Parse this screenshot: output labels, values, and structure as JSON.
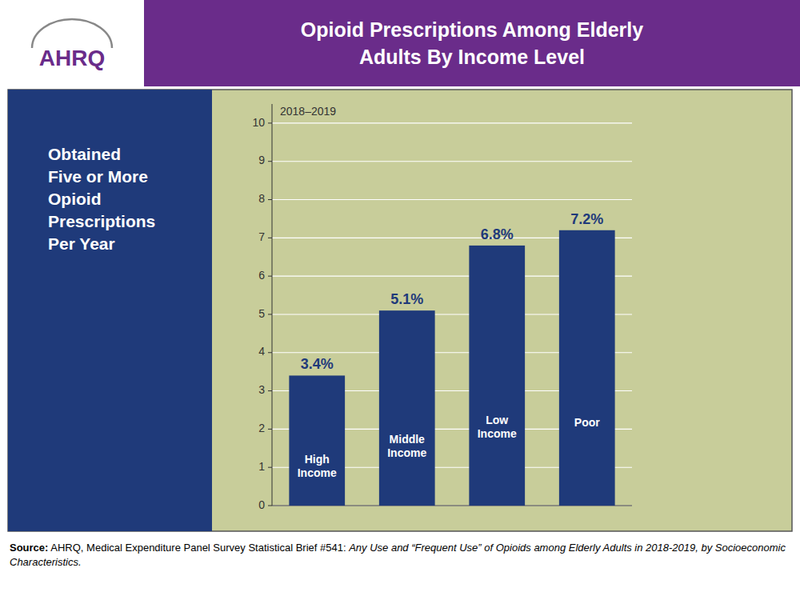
{
  "chart_data": {
    "type": "bar",
    "title": "Opioid Prescriptions Among Elderly\nAdults By Income Level",
    "categories": [
      "High\nIncome",
      "Middle\nIncome",
      "Low\nIncome",
      "Poor"
    ],
    "values": [
      3.4,
      5.1,
      6.8,
      7.2
    ],
    "value_labels": [
      "3.4%",
      "5.1%",
      "6.8%",
      "7.2%"
    ],
    "data_labels": true,
    "color": "#1F3A7A",
    "ylim": [
      0,
      10.5
    ],
    "yticks": [
      0,
      1,
      2,
      3,
      4,
      5,
      6,
      7,
      8,
      9,
      10
    ],
    "grid": true,
    "tick_labels": "y",
    "annotations": [
      "AHRQ",
      "Obtained\nFive or More\nOpioid\nPrescriptions\nPer Year",
      "2018–2019",
      "Source:",
      "AHRQ, Medical Expenditure Panel Survey Statistical Brief #541:",
      "Any Use and “Frequent Use” of Opioids among Elderly Adults in 2018-2019, by Socioeconomic Characteristics."
    ]
  }
}
